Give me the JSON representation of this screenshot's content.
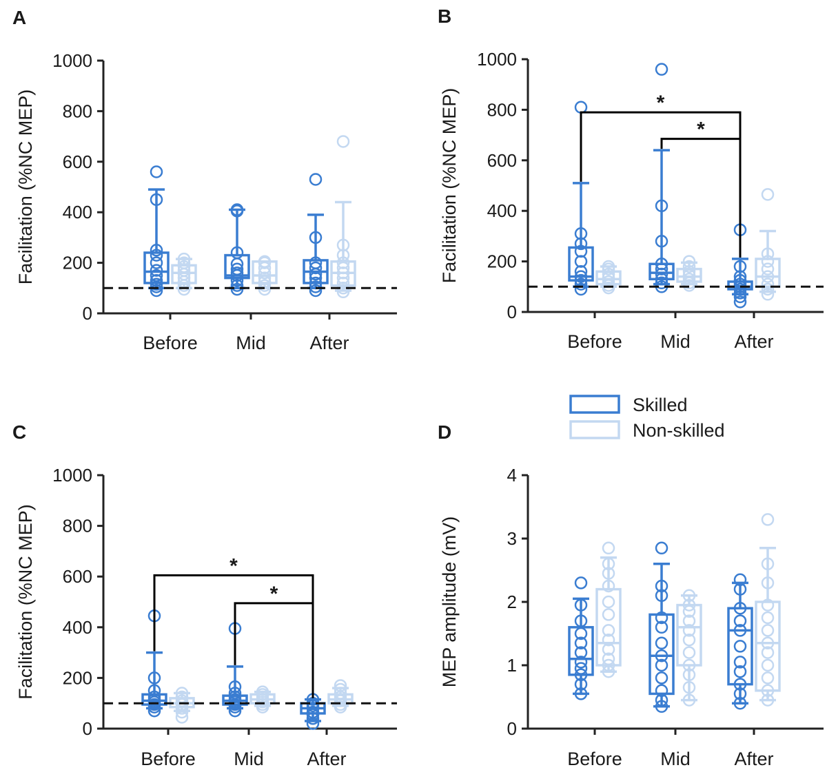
{
  "colors": {
    "skilled": "#3a7dd1",
    "non_skilled": "#c3d8f1",
    "axis": "#222222",
    "bracket": "#000000"
  },
  "legend": {
    "items": [
      {
        "label": "Skilled",
        "color": "#3a7dd1"
      },
      {
        "label": "Non-skilled",
        "color": "#c3d8f1"
      }
    ]
  },
  "chart_data": [
    {
      "id": "A",
      "panel_label": "A",
      "type": "box",
      "ylabel": "Facilitation (%NC MEP)",
      "ylim": [
        0,
        1000
      ],
      "yticks": [
        "0",
        "200",
        "400",
        "600",
        "800",
        "1000"
      ],
      "categories": [
        "Before",
        "Mid",
        "After"
      ],
      "reference_line": 100,
      "series": [
        {
          "name": "Skilled",
          "boxes": [
            {
              "min": 100,
              "q1": 120,
              "median": 165,
              "q3": 240,
              "max": 490,
              "points": [
                90,
                105,
                115,
                130,
                150,
                170,
                200,
                230,
                250,
                450,
                560
              ]
            },
            {
              "min": 100,
              "q1": 140,
              "median": 150,
              "q3": 230,
              "max": 410,
              "points": [
                95,
                110,
                130,
                150,
                160,
                175,
                195,
                240,
                405,
                410
              ]
            },
            {
              "min": 100,
              "q1": 120,
              "median": 165,
              "q3": 210,
              "max": 390,
              "points": [
                90,
                105,
                120,
                140,
                155,
                180,
                200,
                300,
                530
              ]
            }
          ]
        },
        {
          "name": "Non-skilled",
          "boxes": [
            {
              "min": 100,
              "q1": 120,
              "median": 160,
              "q3": 190,
              "max": 215,
              "points": [
                95,
                110,
                125,
                140,
                155,
                170,
                185,
                200,
                215
              ]
            },
            {
              "min": 100,
              "q1": 120,
              "median": 150,
              "q3": 205,
              "max": 205,
              "points": [
                95,
                110,
                125,
                140,
                160,
                180,
                200,
                205
              ]
            },
            {
              "min": 90,
              "q1": 110,
              "median": 160,
              "q3": 205,
              "max": 440,
              "points": [
                85,
                100,
                120,
                140,
                160,
                180,
                200,
                230,
                270,
                680
              ]
            }
          ]
        }
      ],
      "significance": []
    },
    {
      "id": "B",
      "panel_label": "B",
      "type": "box",
      "ylabel": "Facilitation (%NC MEP)",
      "ylim": [
        0,
        1000
      ],
      "yticks": [
        "0",
        "200",
        "400",
        "600",
        "800",
        "1000"
      ],
      "categories": [
        "Before",
        "Mid",
        "After"
      ],
      "reference_line": 100,
      "series": [
        {
          "name": "Skilled",
          "boxes": [
            {
              "min": 100,
              "q1": 125,
              "median": 140,
              "q3": 255,
              "max": 510,
              "points": [
                90,
                110,
                125,
                140,
                160,
                200,
                240,
                270,
                310,
                810
              ]
            },
            {
              "min": 110,
              "q1": 130,
              "median": 155,
              "q3": 190,
              "max": 640,
              "points": [
                100,
                115,
                130,
                150,
                170,
                190,
                280,
                420,
                960
              ]
            },
            {
              "min": 70,
              "q1": 90,
              "median": 100,
              "q3": 120,
              "max": 210,
              "points": [
                40,
                60,
                75,
                90,
                100,
                110,
                125,
                140,
                180,
                325
              ]
            }
          ]
        },
        {
          "name": "Non-skilled",
          "boxes": [
            {
              "min": 100,
              "q1": 110,
              "median": 130,
              "q3": 160,
              "max": 180,
              "points": [
                95,
                105,
                120,
                135,
                150,
                170,
                180
              ]
            },
            {
              "min": 110,
              "q1": 120,
              "median": 140,
              "q3": 170,
              "max": 195,
              "points": [
                105,
                115,
                130,
                145,
                160,
                180,
                200
              ]
            },
            {
              "min": 80,
              "q1": 100,
              "median": 140,
              "q3": 210,
              "max": 320,
              "points": [
                70,
                90,
                110,
                140,
                170,
                200,
                230,
                465
              ]
            }
          ]
        }
      ],
      "significance": [
        {
          "from": "Before",
          "to": "After",
          "label": "*",
          "level": 790
        },
        {
          "from": "Mid",
          "to": "After",
          "label": "*",
          "level": 685
        }
      ]
    },
    {
      "id": "C",
      "panel_label": "C",
      "type": "box",
      "ylabel": "Facilitation (%NC MEP)",
      "ylim": [
        0,
        1000
      ],
      "yticks": [
        "0",
        "200",
        "400",
        "600",
        "800",
        "1000"
      ],
      "categories": [
        "Before",
        "Mid",
        "After"
      ],
      "reference_line": 100,
      "series": [
        {
          "name": "Skilled",
          "boxes": [
            {
              "min": 80,
              "q1": 95,
              "median": 110,
              "q3": 135,
              "max": 300,
              "points": [
                70,
                85,
                95,
                105,
                115,
                125,
                150,
                200,
                445
              ]
            },
            {
              "min": 80,
              "q1": 95,
              "median": 110,
              "q3": 130,
              "max": 245,
              "points": [
                70,
                85,
                95,
                105,
                115,
                125,
                140,
                165,
                395
              ]
            },
            {
              "min": 30,
              "q1": 60,
              "median": 80,
              "q3": 100,
              "max": 115,
              "points": [
                20,
                40,
                55,
                65,
                80,
                90,
                100,
                115
              ]
            }
          ]
        },
        {
          "name": "Non-skilled",
          "boxes": [
            {
              "min": 70,
              "q1": 85,
              "median": 100,
              "q3": 120,
              "max": 140,
              "points": [
                45,
                65,
                80,
                95,
                110,
                125,
                140
              ]
            },
            {
              "min": 90,
              "q1": 100,
              "median": 115,
              "q3": 135,
              "max": 145,
              "points": [
                85,
                95,
                105,
                115,
                125,
                135,
                145
              ]
            },
            {
              "min": 90,
              "q1": 100,
              "median": 115,
              "q3": 135,
              "max": 160,
              "points": [
                85,
                95,
                110,
                125,
                140,
                155,
                170
              ]
            }
          ]
        }
      ],
      "significance": [
        {
          "from": "Before",
          "to": "After",
          "label": "*",
          "level": 605
        },
        {
          "from": "Mid",
          "to": "After",
          "label": "*",
          "level": 495
        }
      ]
    },
    {
      "id": "D",
      "panel_label": "D",
      "type": "box",
      "ylabel": "MEP amplitude (mV)",
      "ylim": [
        0,
        4
      ],
      "yticks": [
        "0",
        "1",
        "2",
        "3",
        "4"
      ],
      "categories": [
        "Before",
        "Mid",
        "After"
      ],
      "reference_line": null,
      "series": [
        {
          "name": "Skilled",
          "boxes": [
            {
              "min": 0.55,
              "q1": 0.85,
              "median": 1.1,
              "q3": 1.6,
              "max": 2.05,
              "points": [
                0.55,
                0.7,
                0.85,
                0.95,
                1.05,
                1.2,
                1.35,
                1.5,
                1.7,
                1.95,
                2.3
              ]
            },
            {
              "min": 0.35,
              "q1": 0.55,
              "median": 1.15,
              "q3": 1.8,
              "max": 2.6,
              "points": [
                0.35,
                0.45,
                0.6,
                0.8,
                1.0,
                1.15,
                1.35,
                1.6,
                1.75,
                2.1,
                2.25,
                2.85
              ]
            },
            {
              "min": 0.4,
              "q1": 0.7,
              "median": 1.55,
              "q3": 1.9,
              "max": 2.3,
              "points": [
                0.4,
                0.55,
                0.7,
                0.9,
                1.05,
                1.3,
                1.55,
                1.7,
                1.9,
                2.2,
                2.35
              ]
            }
          ]
        },
        {
          "name": "Non-skilled",
          "boxes": [
            {
              "min": 0.9,
              "q1": 1.0,
              "median": 1.35,
              "q3": 2.2,
              "max": 2.7,
              "points": [
                0.9,
                1.0,
                1.1,
                1.25,
                1.4,
                1.55,
                1.8,
                2.0,
                2.25,
                2.45,
                2.6,
                2.85
              ]
            },
            {
              "min": 0.45,
              "q1": 1.0,
              "median": 1.6,
              "q3": 1.95,
              "max": 2.1,
              "points": [
                0.45,
                0.65,
                0.85,
                1.0,
                1.2,
                1.4,
                1.55,
                1.7,
                1.85,
                1.95,
                2.1
              ]
            },
            {
              "min": 0.45,
              "q1": 0.6,
              "median": 1.35,
              "q3": 2.0,
              "max": 2.85,
              "points": [
                0.45,
                0.6,
                0.8,
                1.0,
                1.2,
                1.35,
                1.55,
                1.75,
                1.95,
                2.3,
                2.6,
                3.3
              ]
            }
          ]
        }
      ],
      "significance": []
    }
  ]
}
